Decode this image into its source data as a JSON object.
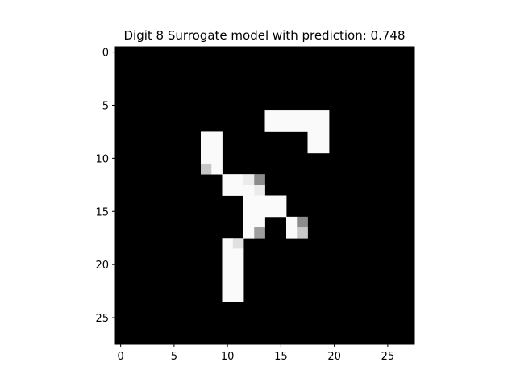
{
  "chart_data": {
    "type": "heatmap",
    "title": "Digit 8 Surrogate model with prediction: 0.748",
    "xlabel": "",
    "ylabel": "",
    "colormap": "gray",
    "background_value": 0,
    "grid": false,
    "rows": 28,
    "cols": 28,
    "xlim": [
      -0.5,
      27.5
    ],
    "ylim": [
      27.5,
      -0.5
    ],
    "x_ticks": [
      0,
      5,
      10,
      15,
      20,
      25
    ],
    "y_ticks": [
      0,
      5,
      10,
      15,
      20,
      25
    ],
    "x_tick_labels": [
      "0",
      "5",
      "10",
      "15",
      "20",
      "25"
    ],
    "y_tick_labels": [
      "0",
      "5",
      "10",
      "15",
      "20",
      "25"
    ],
    "cells": [
      {
        "row": 6,
        "cols": [
          14,
          19
        ],
        "value": 0.98
      },
      {
        "row": 7,
        "cols": [
          14,
          19
        ],
        "value": 0.98
      },
      {
        "row": 8,
        "cols": [
          18,
          19
        ],
        "value": 0.98
      },
      {
        "row": 9,
        "cols": [
          18,
          19
        ],
        "value": 0.98
      },
      {
        "row": 8,
        "cols": [
          8,
          9
        ],
        "value": 0.98
      },
      {
        "row": 9,
        "cols": [
          8,
          9
        ],
        "value": 0.98
      },
      {
        "row": 10,
        "cols": [
          8,
          9
        ],
        "value": 0.98
      },
      {
        "row": 11,
        "cols": [
          8,
          8
        ],
        "value": 0.78
      },
      {
        "row": 11,
        "cols": [
          9,
          9
        ],
        "value": 0.98
      },
      {
        "row": 12,
        "cols": [
          10,
          11
        ],
        "value": 0.98
      },
      {
        "row": 12,
        "cols": [
          12,
          12
        ],
        "value": 0.92
      },
      {
        "row": 12,
        "cols": [
          13,
          13
        ],
        "value": 0.55
      },
      {
        "row": 13,
        "cols": [
          10,
          12
        ],
        "value": 0.98
      },
      {
        "row": 13,
        "cols": [
          13,
          13
        ],
        "value": 0.92
      },
      {
        "row": 14,
        "cols": [
          12,
          15
        ],
        "value": 0.98
      },
      {
        "row": 15,
        "cols": [
          12,
          15
        ],
        "value": 0.98
      },
      {
        "row": 16,
        "cols": [
          12,
          13
        ],
        "value": 0.98
      },
      {
        "row": 16,
        "cols": [
          16,
          16
        ],
        "value": 0.98
      },
      {
        "row": 16,
        "cols": [
          17,
          17
        ],
        "value": 0.55
      },
      {
        "row": 17,
        "cols": [
          12,
          12
        ],
        "value": 0.98
      },
      {
        "row": 17,
        "cols": [
          13,
          13
        ],
        "value": 0.62
      },
      {
        "row": 17,
        "cols": [
          16,
          16
        ],
        "value": 0.98
      },
      {
        "row": 17,
        "cols": [
          17,
          17
        ],
        "value": 0.78
      },
      {
        "row": 18,
        "cols": [
          10,
          10
        ],
        "value": 0.98
      },
      {
        "row": 18,
        "cols": [
          11,
          11
        ],
        "value": 0.88
      },
      {
        "row": 19,
        "cols": [
          10,
          11
        ],
        "value": 0.98
      },
      {
        "row": 20,
        "cols": [
          10,
          11
        ],
        "value": 0.98
      },
      {
        "row": 21,
        "cols": [
          10,
          11
        ],
        "value": 0.98
      },
      {
        "row": 22,
        "cols": [
          10,
          11
        ],
        "value": 0.98
      },
      {
        "row": 23,
        "cols": [
          10,
          11
        ],
        "value": 0.98
      }
    ]
  }
}
